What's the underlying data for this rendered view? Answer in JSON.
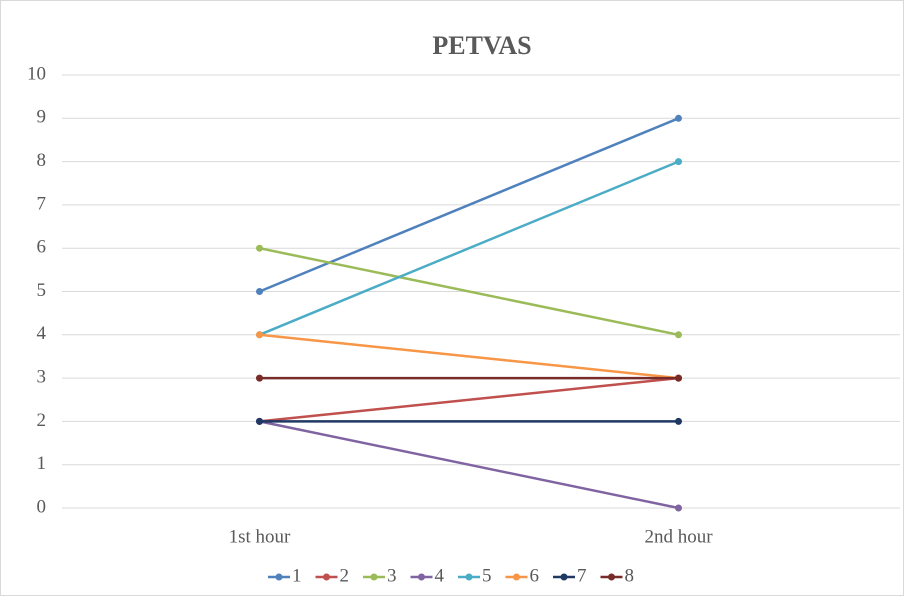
{
  "chart_data": {
    "type": "line",
    "title": "PETVAS",
    "categories": [
      "1st hour",
      "2nd hour"
    ],
    "series": [
      {
        "name": "1",
        "color": "#4f81bd",
        "values": [
          5,
          9
        ]
      },
      {
        "name": "2",
        "color": "#c0504d",
        "values": [
          2,
          3
        ]
      },
      {
        "name": "3",
        "color": "#9bbb59",
        "values": [
          6,
          4
        ]
      },
      {
        "name": "4",
        "color": "#8064a2",
        "values": [
          2,
          0
        ]
      },
      {
        "name": "5",
        "color": "#4bacc6",
        "values": [
          4,
          8
        ]
      },
      {
        "name": "6",
        "color": "#f79646",
        "values": [
          4,
          3
        ]
      },
      {
        "name": "7",
        "color": "#1f3864",
        "values": [
          2,
          2
        ]
      },
      {
        "name": "8",
        "color": "#772c2a",
        "values": [
          3,
          3
        ]
      }
    ],
    "ylim": [
      0,
      10
    ],
    "yticks": [
      0,
      1,
      2,
      3,
      4,
      5,
      6,
      7,
      8,
      9,
      10
    ],
    "grid": true,
    "legend": "bottom"
  }
}
